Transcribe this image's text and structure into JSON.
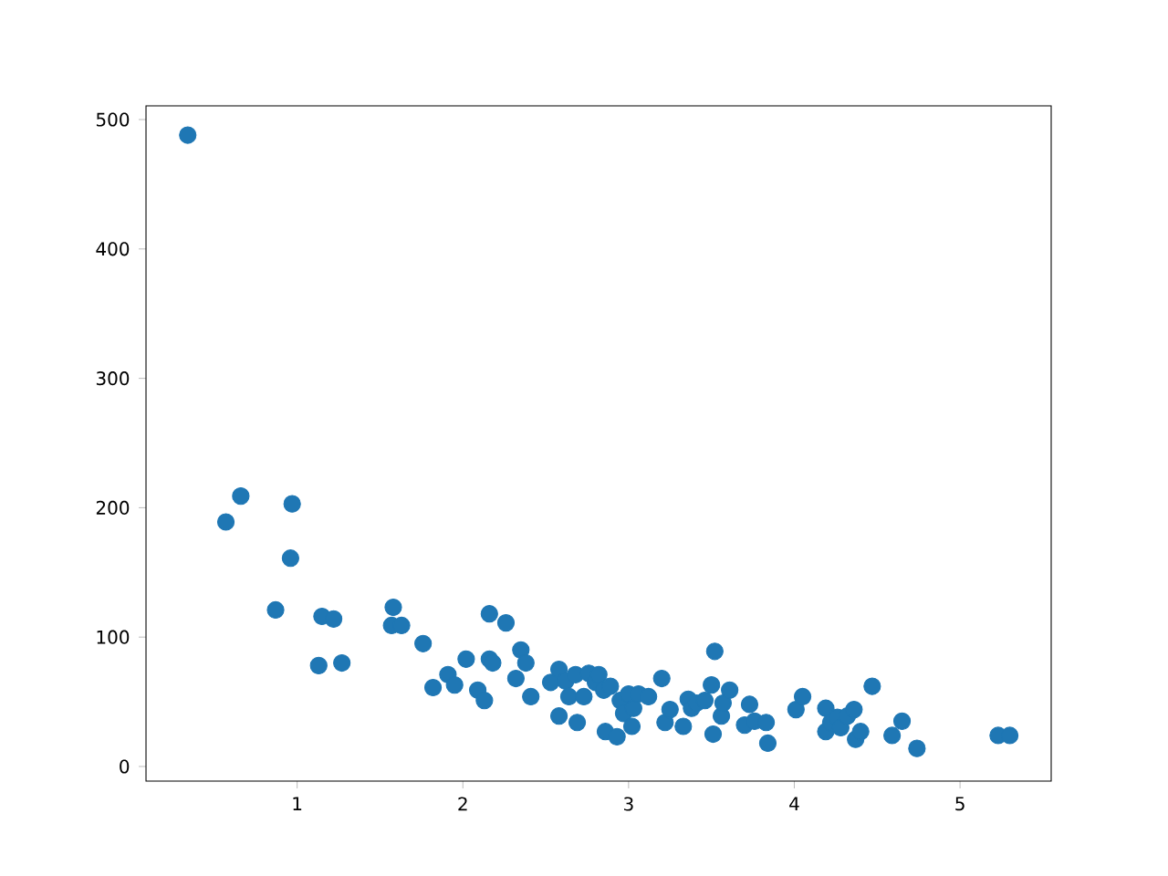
{
  "chart_data": {
    "type": "scatter",
    "xlim": [
      0.088,
      5.55
    ],
    "ylim": [
      -11.3,
      510.6
    ],
    "xticks": [
      1,
      2,
      3,
      4,
      5
    ],
    "yticks": [
      0,
      100,
      200,
      300,
      400,
      500
    ],
    "grid": false,
    "series": [
      {
        "color": "#1f77b4",
        "x": [
          0.34,
          0.57,
          0.66,
          0.97,
          0.96,
          0.87,
          1.15,
          1.22,
          1.13,
          1.27,
          1.57,
          1.58,
          1.63,
          1.76,
          1.82,
          1.91,
          1.95,
          2.02,
          2.09,
          2.13,
          2.16,
          2.16,
          2.18,
          2.26,
          2.32,
          2.35,
          2.38,
          2.41,
          2.53,
          2.58,
          2.58,
          2.62,
          2.64,
          2.68,
          2.69,
          2.73,
          2.76,
          2.8,
          2.82,
          2.85,
          2.86,
          2.89,
          2.93,
          2.95,
          2.97,
          3.0,
          3.02,
          3.03,
          3.06,
          3.12,
          3.2,
          3.22,
          3.25,
          3.33,
          3.36,
          3.38,
          3.41,
          3.46,
          3.5,
          3.51,
          3.52,
          3.56,
          3.57,
          3.61,
          3.7,
          3.73,
          3.76,
          3.83,
          3.84,
          4.01,
          4.05,
          4.19,
          4.19,
          4.22,
          4.26,
          4.28,
          4.32,
          4.36,
          4.37,
          4.4,
          4.47,
          4.59,
          4.65,
          4.74,
          5.23,
          5.3
        ],
        "values": [
          488,
          189,
          209,
          203,
          161,
          121,
          116,
          114,
          78,
          80,
          109,
          123,
          109,
          95,
          61,
          71,
          63,
          83,
          59,
          51,
          118,
          83,
          80,
          111,
          68,
          90,
          80,
          54,
          65,
          75,
          39,
          66,
          54,
          71,
          34,
          54,
          72,
          65,
          71,
          59,
          27,
          62,
          23,
          51,
          41,
          56,
          31,
          45,
          56,
          54,
          68,
          34,
          44,
          31,
          52,
          45,
          49,
          51,
          63,
          25,
          89,
          39,
          49,
          59,
          32,
          48,
          35,
          34,
          18,
          44,
          54,
          45,
          27,
          34,
          38,
          30,
          39,
          44,
          21,
          27,
          62,
          24,
          35,
          14,
          24,
          24
        ]
      }
    ]
  }
}
